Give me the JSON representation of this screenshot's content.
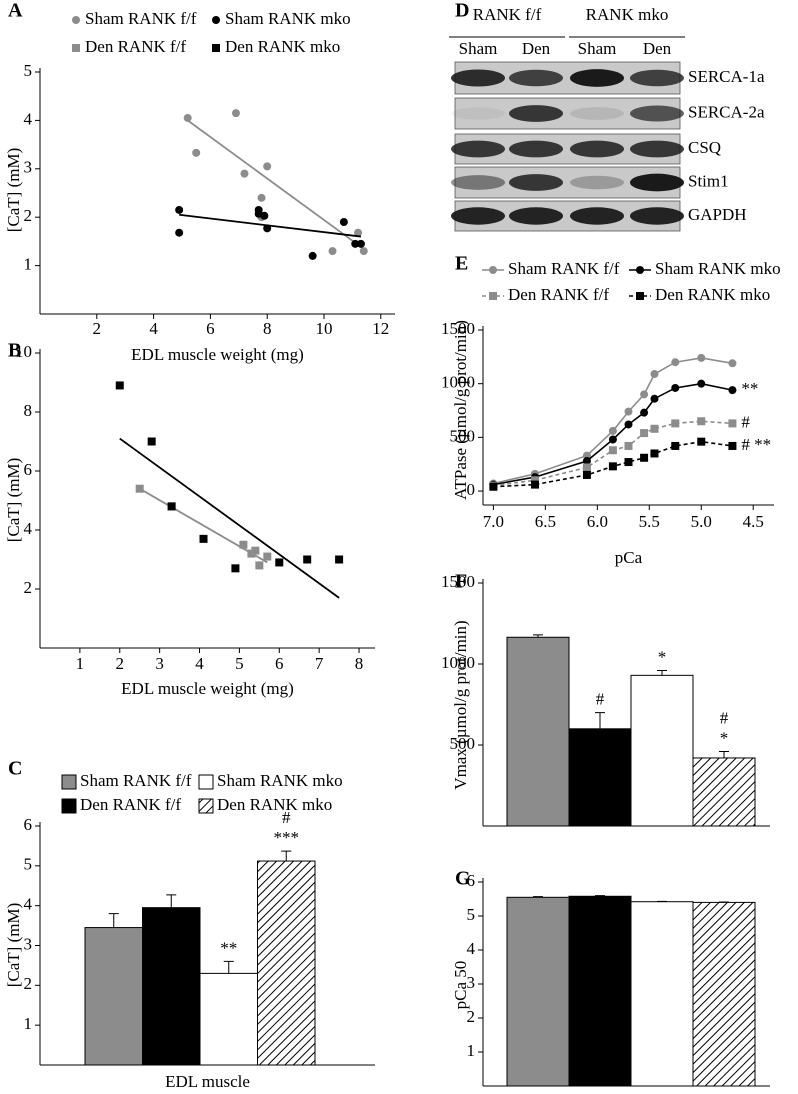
{
  "chart_data": [
    {
      "panel": "A",
      "type": "scatter",
      "xlabel": "EDL muscle weight (mg)",
      "ylabel": "[CaT] (mM)",
      "xlim": [
        0,
        12.5
      ],
      "xticks": [
        2,
        4,
        6,
        8,
        10,
        12
      ],
      "ylim": [
        0,
        5
      ],
      "yticks": [
        1,
        2,
        3,
        4,
        5
      ],
      "series": [
        {
          "name": "Sham RANK f/f",
          "color": "#8c8c8c",
          "marker": "circle",
          "x": [
            5.2,
            5.5,
            6.9,
            7.2,
            7.8,
            8.0,
            7.8,
            10.3,
            11.2,
            11.4
          ],
          "y": [
            4.05,
            3.33,
            4.15,
            2.9,
            2.4,
            3.05,
            2.0,
            1.3,
            1.68,
            1.3
          ],
          "trend_x": [
            5.2,
            11.5
          ],
          "trend_y": [
            4.0,
            1.3
          ]
        },
        {
          "name": "Sham RANK mko",
          "color": "#000000",
          "marker": "circle",
          "x": [
            4.9,
            4.9,
            7.7,
            7.7,
            7.9,
            8.0,
            9.6,
            10.7,
            11.1,
            11.3
          ],
          "y": [
            2.15,
            1.68,
            2.15,
            2.07,
            2.03,
            1.77,
            1.2,
            1.9,
            1.45,
            1.45
          ],
          "trend_x": [
            4.9,
            11.3
          ],
          "trend_y": [
            2.05,
            1.6
          ]
        },
        {
          "name": "Den RANK f/f",
          "color": "#8c8c8c",
          "marker": "square",
          "x": [],
          "y": []
        },
        {
          "name": "Den RANK mko",
          "color": "#000000",
          "marker": "square",
          "x": [],
          "y": []
        }
      ]
    },
    {
      "panel": "B",
      "type": "scatter",
      "xlabel": "EDL muscle weight (mg)",
      "ylabel": "[CaT] (mM)",
      "xlim": [
        0,
        8.4
      ],
      "xticks": [
        1,
        2,
        3,
        4,
        5,
        6,
        7,
        8
      ],
      "ylim": [
        0,
        10
      ],
      "yticks": [
        2,
        4,
        6,
        8,
        10
      ],
      "series": [
        {
          "color": "#8c8c8c",
          "marker": "square",
          "x": [
            2.5,
            3.3,
            5.1,
            5.3,
            5.4,
            5.5,
            5.7
          ],
          "y": [
            5.4,
            4.8,
            3.5,
            3.2,
            3.3,
            2.8,
            3.1
          ],
          "trend_x": [
            2.5,
            5.7
          ],
          "trend_y": [
            5.4,
            2.9
          ]
        },
        {
          "color": "#000000",
          "marker": "square",
          "x": [
            2.0,
            2.8,
            3.3,
            4.1,
            4.9,
            6.0,
            6.7,
            7.5
          ],
          "y": [
            8.9,
            7.0,
            4.8,
            3.7,
            2.7,
            2.9,
            3.0,
            3.0
          ],
          "trend_x": [
            2.0,
            7.5
          ],
          "trend_y": [
            7.1,
            1.7
          ]
        }
      ]
    },
    {
      "panel": "C",
      "type": "bar",
      "categories": [
        "EDL muscle"
      ],
      "ylabel": "[CaT] (mM)",
      "ylim": [
        0,
        6
      ],
      "yticks": [
        1,
        2,
        3,
        4,
        5,
        6
      ],
      "series": [
        {
          "name": "Sham RANK f/f",
          "color": "#8c8c8c",
          "values": [
            3.45
          ],
          "errors": [
            0.35
          ],
          "annotations": []
        },
        {
          "name": "Den RANK f/f",
          "color": "#000000",
          "values": [
            3.95
          ],
          "errors": [
            0.32
          ],
          "annotations": []
        },
        {
          "name": "Sham RANK mko",
          "color": "#ffffff",
          "values": [
            2.3
          ],
          "errors": [
            0.3
          ],
          "annotations": [
            "**"
          ]
        },
        {
          "name": "Den RANK mko",
          "color": "#ffffff",
          "hatch": true,
          "values": [
            5.12
          ],
          "errors": [
            0.25
          ],
          "annotations": [
            "#",
            "***"
          ]
        }
      ]
    },
    {
      "panel": "E",
      "type": "line",
      "xlabel": "pCa",
      "ylabel": "ATPase (µmol/g prot/min)",
      "xlim": [
        7.1,
        4.3
      ],
      "xticks": [
        {
          "value": 7,
          "label": "7.0"
        },
        6.5,
        {
          "value": 6,
          "label": "6.0"
        },
        5.5,
        {
          "value": 5,
          "label": "5.0"
        },
        4.5
      ],
      "ylim": [
        -130,
        1500
      ],
      "yticks": [
        0,
        500,
        1000,
        1500
      ],
      "x": [
        7.0,
        6.6,
        6.1,
        5.85,
        5.7,
        5.55,
        5.45,
        5.25,
        5.0,
        4.7
      ],
      "series": [
        {
          "name": "Sham RANK f/f",
          "color": "#8c8c8c",
          "marker": "circle",
          "values": [
            70,
            160,
            330,
            560,
            740,
            900,
            1090,
            1200,
            1240,
            1190
          ]
        },
        {
          "name": "Sham RANK mko",
          "color": "#000000",
          "marker": "circle",
          "values": [
            60,
            130,
            280,
            480,
            620,
            730,
            860,
            960,
            1000,
            940
          ],
          "annotation": "**"
        },
        {
          "name": "Den RANK f/f",
          "color": "#8c8c8c",
          "marker": "square",
          "dashed": true,
          "values": [
            50,
            100,
            220,
            380,
            420,
            540,
            580,
            630,
            650,
            630
          ],
          "annotation": "#"
        },
        {
          "name": "Den RANK mko",
          "color": "#000000",
          "marker": "square",
          "dashed": true,
          "values": [
            40,
            60,
            150,
            230,
            270,
            310,
            350,
            420,
            460,
            420
          ],
          "annotation": "# **"
        }
      ]
    },
    {
      "panel": "F",
      "type": "bar",
      "ylabel": "Vmax (µmol/g prot/min)",
      "ylim": [
        0,
        1500
      ],
      "yticks": [
        500,
        1000,
        1500
      ],
      "series": [
        {
          "color": "#8c8c8c",
          "values": [
            1165
          ],
          "errors": [
            15
          ],
          "annotations": []
        },
        {
          "color": "#000000",
          "values": [
            600
          ],
          "errors": [
            100
          ],
          "annotations": [
            "#"
          ]
        },
        {
          "color": "#ffffff",
          "values": [
            930
          ],
          "errors": [
            30
          ],
          "annotations": [
            "*"
          ]
        },
        {
          "color": "#ffffff",
          "hatch": true,
          "values": [
            420
          ],
          "errors": [
            40
          ],
          "annotations": [
            "#",
            "*"
          ]
        }
      ]
    },
    {
      "panel": "G",
      "type": "bar",
      "ylabel": "pCa 50",
      "ylim": [
        0,
        6
      ],
      "yticks": [
        1,
        2,
        3,
        4,
        5,
        6
      ],
      "series": [
        {
          "color": "#8c8c8c",
          "values": [
            5.55
          ],
          "errors": [
            0.02
          ],
          "annotations": []
        },
        {
          "color": "#000000",
          "values": [
            5.58
          ],
          "errors": [
            0.02
          ],
          "annotations": []
        },
        {
          "color": "#ffffff",
          "values": [
            5.42
          ],
          "errors": [
            0.01
          ],
          "annotations": []
        },
        {
          "color": "#ffffff",
          "hatch": true,
          "values": [
            5.4
          ],
          "errors": [
            0.01
          ],
          "annotations": []
        }
      ]
    }
  ],
  "blot": {
    "panel": "D",
    "groups": [
      "RANK f/f",
      "RANK mko"
    ],
    "lanes": [
      "Sham",
      "Den",
      "Sham",
      "Den"
    ],
    "rows": [
      "SERCA-1a",
      "SERCA-2a",
      "CSQ",
      "Stim1",
      "GAPDH"
    ]
  }
}
